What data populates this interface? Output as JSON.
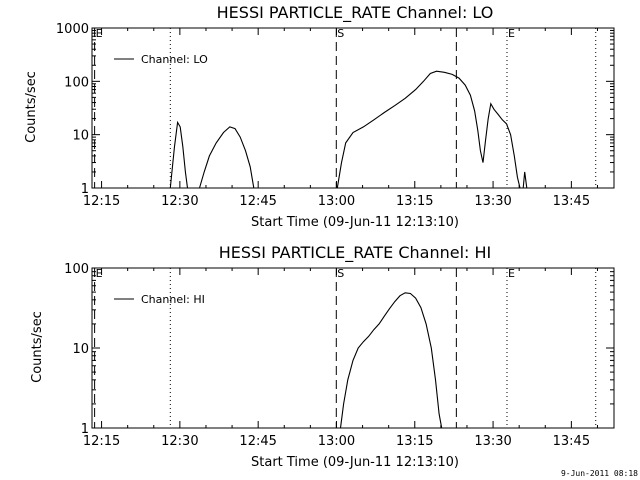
{
  "footer": {
    "timestamp": "9-Jun-2011 08:18"
  },
  "chart_data": [
    {
      "type": "line",
      "title": "HESSI PARTICLE_RATE Channel: LO",
      "xlabel": "Start Time (09-Jun-11 12:13:10)",
      "ylabel": "Counts/sec",
      "x_unit": "minutes after 12:13:10",
      "xlim": [
        0,
        100
      ],
      "ylim": [
        1,
        1000
      ],
      "yscale": "log",
      "xticks": [
        "12:15",
        "12:30",
        "12:45",
        "13:00",
        "13:15",
        "13:30",
        "13:45"
      ],
      "yticks": [
        "1",
        "10",
        "100",
        "1000"
      ],
      "legend": {
        "position": "top-left",
        "entries": [
          "Channel: LO"
        ]
      },
      "markers": [
        {
          "label": "E",
          "x": 0.5,
          "style": "dashed"
        },
        {
          "label": "S",
          "x": 46.8,
          "style": "dashed"
        },
        {
          "label": "E",
          "x": 79.5,
          "style": "dotted"
        }
      ],
      "extra_lines": [
        {
          "x": 15.0,
          "style": "dotted"
        },
        {
          "x": 69.8,
          "style": "dashed"
        },
        {
          "x": 96.5,
          "style": "dotted"
        }
      ],
      "series": [
        {
          "name": "Channel: LO",
          "segments": [
            [
              [
                15.0,
                1
              ],
              [
                15.8,
                6
              ],
              [
                16.4,
                17
              ],
              [
                16.9,
                14
              ],
              [
                17.4,
                6
              ],
              [
                17.9,
                2
              ],
              [
                18.3,
                1
              ]
            ],
            [
              [
                20.6,
                1
              ],
              [
                21.5,
                2
              ],
              [
                22.5,
                4
              ],
              [
                23.8,
                7
              ],
              [
                25.2,
                11
              ],
              [
                26.4,
                14
              ],
              [
                27.4,
                13
              ],
              [
                28.4,
                9
              ],
              [
                29.4,
                5
              ],
              [
                30.3,
                2.5
              ],
              [
                31.0,
                1
              ]
            ],
            [
              [
                47.0,
                1
              ],
              [
                47.8,
                3
              ],
              [
                48.6,
                7
              ],
              [
                50.0,
                11
              ],
              [
                52.0,
                14
              ],
              [
                54.0,
                19
              ],
              [
                56.0,
                26
              ],
              [
                58.0,
                35
              ],
              [
                60.0,
                48
              ],
              [
                62.0,
                70
              ],
              [
                63.5,
                100
              ],
              [
                64.8,
                140
              ],
              [
                66.0,
                155
              ],
              [
                67.5,
                148
              ],
              [
                69.0,
                135
              ],
              [
                70.3,
                115
              ],
              [
                71.5,
                85
              ],
              [
                72.5,
                55
              ],
              [
                73.3,
                28
              ],
              [
                73.9,
                12
              ],
              [
                74.4,
                5
              ],
              [
                74.9,
                3
              ],
              [
                75.4,
                8
              ],
              [
                75.9,
                20
              ],
              [
                76.4,
                38
              ],
              [
                77.0,
                30
              ],
              [
                77.8,
                24
              ],
              [
                78.6,
                19
              ],
              [
                79.4,
                16
              ],
              [
                80.2,
                10
              ],
              [
                80.9,
                4
              ],
              [
                81.5,
                1.6
              ],
              [
                82.0,
                1
              ]
            ],
            [
              [
                82.6,
                1
              ],
              [
                82.9,
                2
              ],
              [
                83.3,
                1
              ]
            ]
          ]
        }
      ]
    },
    {
      "type": "line",
      "title": "HESSI PARTICLE_RATE Channel: HI",
      "xlabel": "Start Time (09-Jun-11 12:13:10)",
      "ylabel": "Counts/sec",
      "x_unit": "minutes after 12:13:10",
      "xlim": [
        0,
        100
      ],
      "ylim": [
        1,
        100
      ],
      "yscale": "log",
      "xticks": [
        "12:15",
        "12:30",
        "12:45",
        "13:00",
        "13:15",
        "13:30",
        "13:45"
      ],
      "yticks": [
        "1",
        "10",
        "100"
      ],
      "legend": {
        "position": "top-left",
        "entries": [
          "Channel: HI"
        ]
      },
      "markers": [
        {
          "label": "E",
          "x": 0.5,
          "style": "dashed"
        },
        {
          "label": "S",
          "x": 46.8,
          "style": "dashed"
        },
        {
          "label": "E",
          "x": 79.5,
          "style": "dotted"
        }
      ],
      "extra_lines": [
        {
          "x": 15.0,
          "style": "dotted"
        },
        {
          "x": 69.8,
          "style": "dashed"
        },
        {
          "x": 96.5,
          "style": "dotted"
        }
      ],
      "series": [
        {
          "name": "Channel: HI",
          "segments": [
            [
              [
                47.6,
                1
              ],
              [
                48.2,
                2
              ],
              [
                49.0,
                4
              ],
              [
                50.0,
                7
              ],
              [
                51.0,
                10
              ],
              [
                52.0,
                12
              ],
              [
                53.0,
                14
              ],
              [
                54.0,
                17
              ],
              [
                55.0,
                20
              ],
              [
                56.0,
                25
              ],
              [
                57.0,
                31
              ],
              [
                58.0,
                38
              ],
              [
                59.0,
                45
              ],
              [
                60.0,
                49
              ],
              [
                61.0,
                48
              ],
              [
                62.0,
                42
              ],
              [
                63.0,
                32
              ],
              [
                64.0,
                20
              ],
              [
                65.0,
                10
              ],
              [
                65.8,
                4
              ],
              [
                66.5,
                1.5
              ],
              [
                67.0,
                1
              ]
            ]
          ]
        }
      ]
    }
  ]
}
